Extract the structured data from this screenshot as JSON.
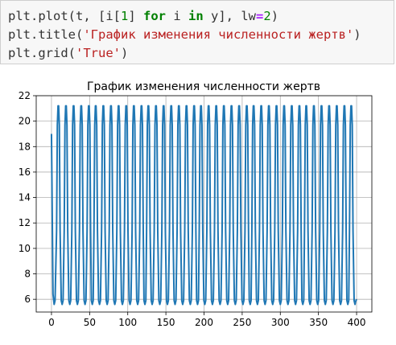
{
  "code_cell": {
    "lines": [
      [
        {
          "t": "plt.plot(t, [i[",
          "c": "p"
        },
        {
          "t": "1",
          "c": "num"
        },
        {
          "t": "] ",
          "c": "p"
        },
        {
          "t": "for",
          "c": "kw"
        },
        {
          "t": " i ",
          "c": "p"
        },
        {
          "t": "in",
          "c": "kw"
        },
        {
          "t": " y], lw",
          "c": "p"
        },
        {
          "t": "=",
          "c": "op"
        },
        {
          "t": "2",
          "c": "num"
        },
        {
          "t": ")",
          "c": "p"
        }
      ],
      [
        {
          "t": "plt.title(",
          "c": "p"
        },
        {
          "t": "'График изменения численности жертв'",
          "c": "str"
        },
        {
          "t": ")",
          "c": "p"
        }
      ],
      [
        {
          "t": "plt.grid(",
          "c": "p"
        },
        {
          "t": "'True'",
          "c": "str"
        },
        {
          "t": ")",
          "c": "p"
        }
      ]
    ]
  },
  "chart_data": {
    "type": "line",
    "title": "График изменения численности жертв",
    "xlabel": "",
    "ylabel": "",
    "xlim": [
      -20,
      420
    ],
    "ylim": [
      5,
      22
    ],
    "xticks": [
      0,
      50,
      100,
      150,
      200,
      250,
      300,
      350,
      400
    ],
    "yticks": [
      6,
      8,
      10,
      12,
      14,
      16,
      18,
      20,
      22
    ],
    "grid": true,
    "line_color": "#1f77b4",
    "series": [
      {
        "name": "",
        "x_start": 0,
        "x_end": 400,
        "start_value": 19.0,
        "min": 5.6,
        "max": 21.2,
        "period": 9.9,
        "peak_x": [
          9,
          19,
          29,
          39,
          49,
          58,
          68,
          78,
          88,
          98,
          108,
          118,
          127,
          137,
          147,
          157,
          167,
          177,
          187,
          196,
          206,
          216,
          226,
          236,
          246,
          256,
          265,
          275,
          285,
          295,
          305,
          315,
          325,
          334,
          344,
          354,
          364,
          374,
          384,
          393
        ],
        "end_value": 6.0
      }
    ]
  }
}
